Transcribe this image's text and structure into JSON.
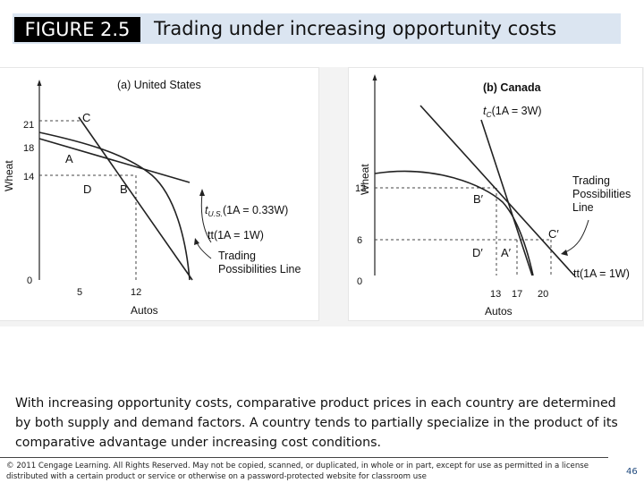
{
  "figure_label": "FIGURE 2.5",
  "figure_title": "Trading under increasing opportunity costs",
  "panel_a": {
    "title": "(a) United States",
    "y_axis_label": "Wheat",
    "x_axis_label": "Autos",
    "y_ticks": [
      "21",
      "18",
      "14",
      "0"
    ],
    "x_ticks": [
      "5",
      "12"
    ],
    "points": [
      "C",
      "A",
      "D",
      "B"
    ],
    "label_tus_prefix": "t",
    "label_tus_sub": "U.S.",
    "label_tus_rest": "(1A = 0.33W)",
    "label_tt": "tt(1A = 1W)",
    "label_trading_1": "Trading",
    "label_trading_2": "Possibilities Line"
  },
  "panel_b": {
    "title": "(b) Canada",
    "y_axis_label": "Wheat",
    "x_axis_label": "Autos",
    "y_ticks": [
      "13",
      "6",
      "0"
    ],
    "x_ticks": [
      "13",
      "17",
      "20"
    ],
    "points": [
      "B′",
      "C′",
      "D′",
      "A′"
    ],
    "label_tc_prefix": "t",
    "label_tc_sub": "C",
    "label_tc_rest": "(1A = 3W)",
    "label_tt": "tt(1A = 1W)",
    "label_trading_1": "Trading",
    "label_trading_2": "Possibilities",
    "label_trading_3": "Line"
  },
  "caption": "With increasing opportunity costs, comparative product prices in each country are determined by both supply and demand factors. A country tends to partially specialize in the product of its comparative advantage under increasing cost conditions.",
  "copyright": "© 2011 Cengage Learning. All Rights Reserved. May not be copied, scanned, or duplicated, in whole or in part, except for use as permitted in a license distributed with a certain product or service or otherwise on a password-protected website for classroom use",
  "page_number": "46"
}
